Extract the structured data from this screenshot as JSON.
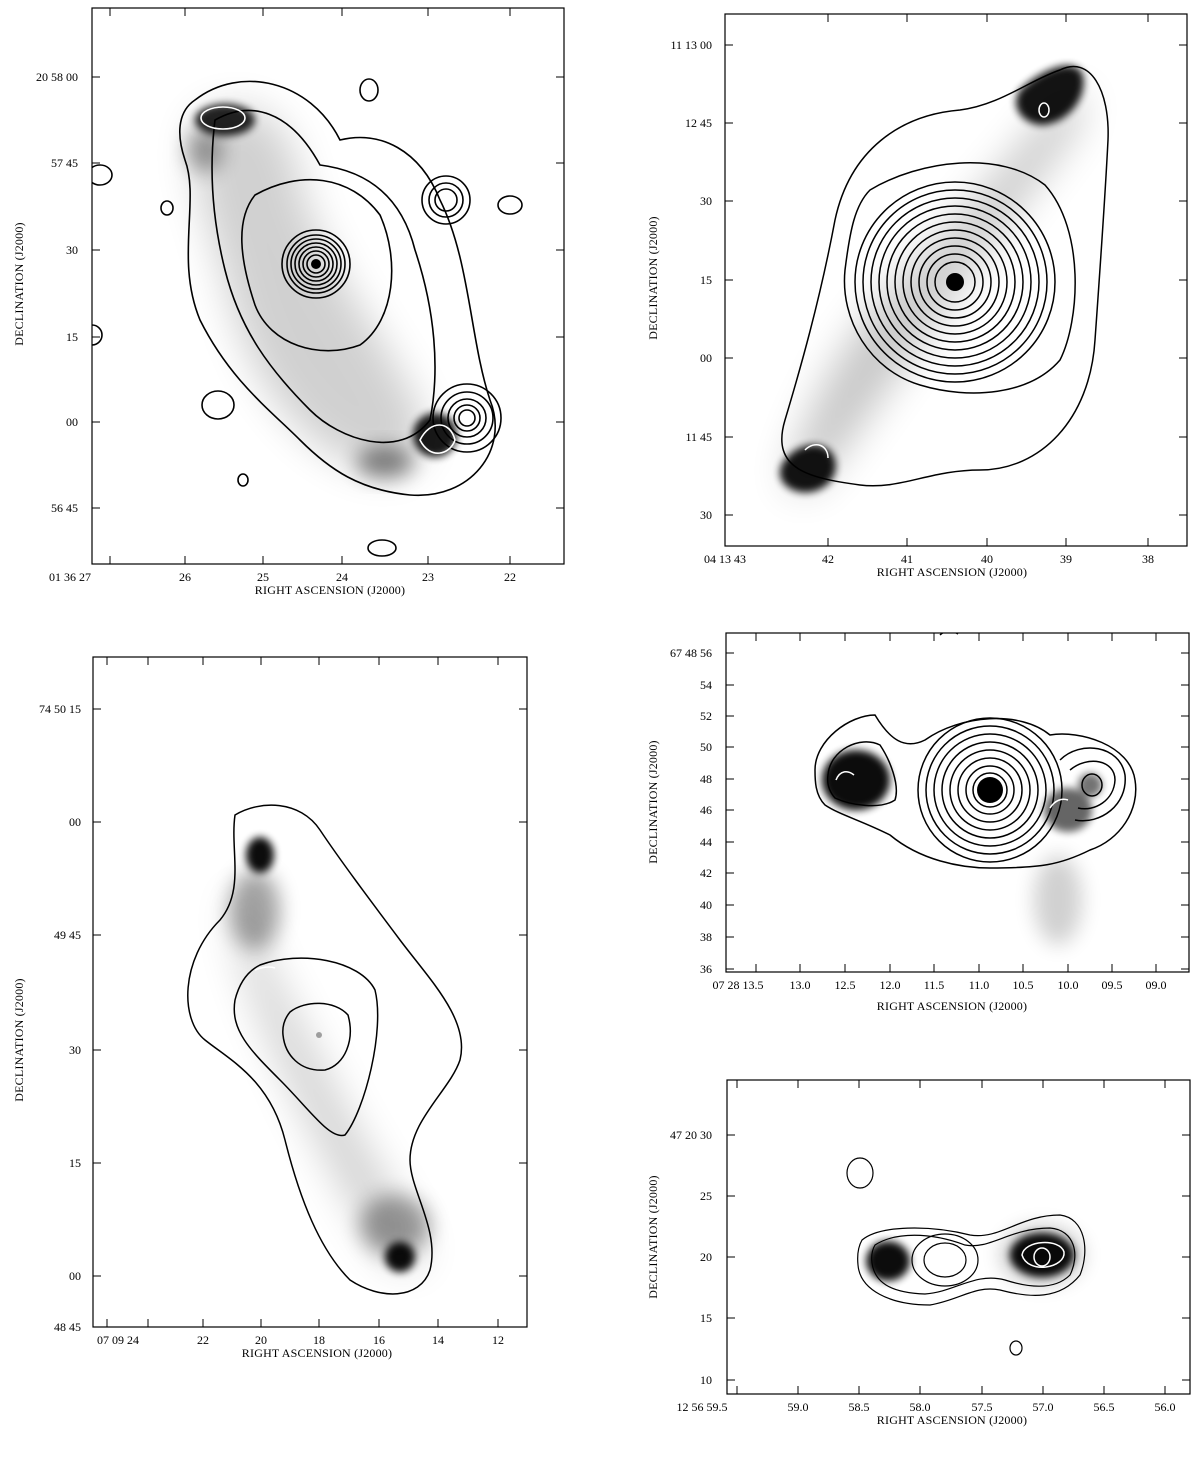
{
  "panels": [
    {
      "id": "p1",
      "xlabel": "RIGHT ASCENSION (J2000)",
      "ylabel": "DECLINATION (J2000)",
      "xticks": [
        "01 36 27",
        "26",
        "25",
        "24",
        "23",
        "22"
      ],
      "yticks": [
        "20 58 00",
        "57 45",
        "30",
        "15",
        "00",
        "56 45"
      ]
    },
    {
      "id": "p2",
      "xlabel": "RIGHT ASCENSION (J2000)",
      "ylabel": "DECLINATION (J2000)",
      "xticks": [
        "04 13 43",
        "42",
        "41",
        "40",
        "39",
        "38"
      ],
      "yticks": [
        "11 13 00",
        "12 45",
        "30",
        "15",
        "00",
        "11 45",
        "30"
      ]
    },
    {
      "id": "p3",
      "xlabel": "RIGHT ASCENSION (J2000)",
      "ylabel": "DECLINATION (J2000)",
      "xticks": [
        "07 09 24",
        "22",
        "20",
        "18",
        "16",
        "14",
        "12"
      ],
      "yticks": [
        "74 50 15",
        "00",
        "49 45",
        "30",
        "15",
        "00",
        "48 45"
      ]
    },
    {
      "id": "p4",
      "xlabel": "RIGHT ASCENSION (J2000)",
      "ylabel": "DECLINATION (J2000)",
      "xticks": [
        "07 28 13.5",
        "13.0",
        "12.5",
        "12.0",
        "11.5",
        "11.0",
        "10.5",
        "10.0",
        "09.5",
        "09.0"
      ],
      "yticks": [
        "67 48 56",
        "54",
        "52",
        "50",
        "48",
        "46",
        "44",
        "42",
        "40",
        "38",
        "36"
      ]
    },
    {
      "id": "p5",
      "xlabel": "RIGHT ASCENSION (J2000)",
      "ylabel": "DECLINATION (J2000)",
      "xticks": [
        "12 56 59.5",
        "59.0",
        "58.5",
        "58.0",
        "57.5",
        "57.0",
        "56.5",
        "56.0"
      ],
      "yticks": [
        "47 20 30",
        "25",
        "20",
        "15",
        "10"
      ]
    }
  ]
}
